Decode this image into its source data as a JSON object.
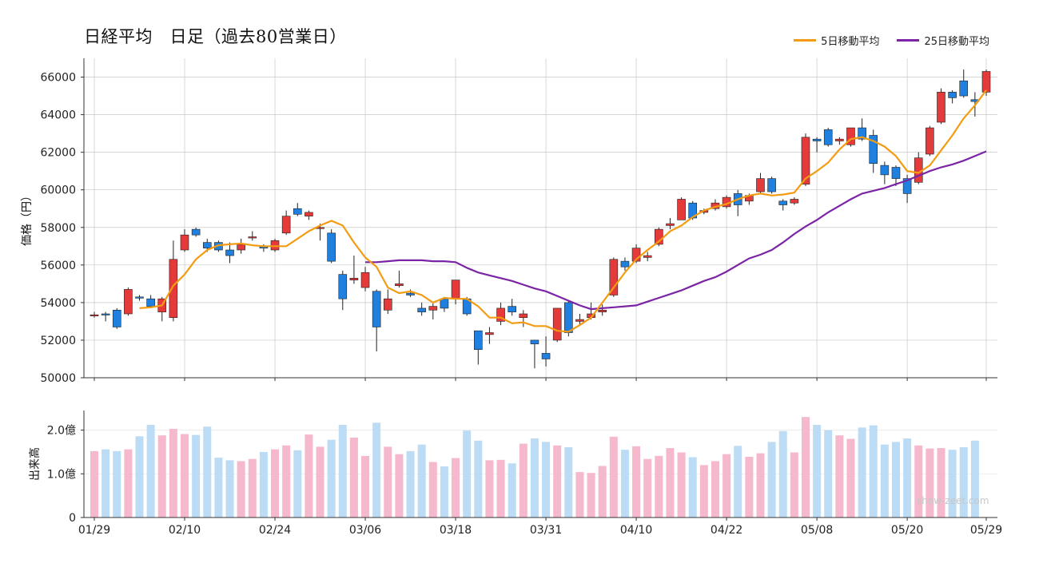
{
  "title": "日経平均　日足（過去80営業日）",
  "watermark": "show-zeet.com",
  "colors": {
    "up": "#e43a3a",
    "down": "#2080e0",
    "ma5": "#f39c12",
    "ma25": "#7b24a6",
    "vol_up": "#f5b8cc",
    "vol_down": "#bcdcf6",
    "grid": "#c8c8c8"
  },
  "legend": [
    {
      "label": "5日移動平均",
      "color": "#f39c12"
    },
    {
      "label": "25日移動平均",
      "color": "#7b24a6"
    }
  ],
  "chart_data": [
    {
      "type": "candlestick",
      "ylabel": "価格（円）",
      "ylim": [
        50000,
        67000
      ],
      "yticks": [
        "50000",
        "52000",
        "54000",
        "56000",
        "58000",
        "60000",
        "62000",
        "64000",
        "66000"
      ],
      "ytick_values": [
        50000,
        52000,
        54000,
        56000,
        58000,
        60000,
        62000,
        64000,
        66000
      ],
      "x_ticks": [
        {
          "index": 0,
          "label": "01/29"
        },
        {
          "index": 8,
          "label": "02/10"
        },
        {
          "index": 16,
          "label": "02/24"
        },
        {
          "index": 24,
          "label": "03/06"
        },
        {
          "index": 32,
          "label": "03/18"
        },
        {
          "index": 40,
          "label": "03/31"
        },
        {
          "index": 48,
          "label": "04/10"
        },
        {
          "index": 56,
          "label": "04/22"
        },
        {
          "index": 64,
          "label": "05/08"
        },
        {
          "index": 72,
          "label": "05/20"
        },
        {
          "index": 79,
          "label": "05/29"
        }
      ],
      "grid": true,
      "ohlc": [
        [
          53300,
          53500,
          53200,
          53350
        ],
        [
          53400,
          53500,
          53000,
          53350
        ],
        [
          53600,
          53700,
          52600,
          52700
        ],
        [
          53400,
          54800,
          53300,
          54700
        ],
        [
          54300,
          54400,
          54100,
          54250
        ],
        [
          54200,
          54400,
          53700,
          53800
        ],
        [
          53500,
          54300,
          53000,
          54200
        ],
        [
          53200,
          57300,
          53000,
          56300
        ],
        [
          56800,
          57900,
          56700,
          57600
        ],
        [
          57900,
          58000,
          57500,
          57600
        ],
        [
          57200,
          57400,
          56700,
          56900
        ],
        [
          57200,
          57300,
          56700,
          56800
        ],
        [
          56800,
          57200,
          56100,
          56500
        ],
        [
          56800,
          57400,
          56600,
          57100
        ],
        [
          57500,
          57800,
          57300,
          57500
        ],
        [
          57000,
          57100,
          56700,
          56900
        ],
        [
          56800,
          57400,
          56700,
          57300
        ],
        [
          57700,
          58900,
          57600,
          58600
        ],
        [
          59000,
          59300,
          58600,
          58700
        ],
        [
          58600,
          58900,
          58400,
          58800
        ],
        [
          58000,
          58200,
          57300,
          58000
        ],
        [
          57700,
          57900,
          56100,
          56200
        ],
        [
          55500,
          55700,
          53600,
          54200
        ],
        [
          55200,
          56500,
          55000,
          55300
        ],
        [
          54800,
          55900,
          54600,
          55600
        ],
        [
          54600,
          54700,
          51400,
          52700
        ],
        [
          53600,
          54700,
          53400,
          54200
        ],
        [
          54900,
          55700,
          54800,
          55000
        ],
        [
          54500,
          54700,
          54300,
          54400
        ],
        [
          53700,
          54000,
          53300,
          53500
        ],
        [
          53600,
          54000,
          53100,
          53800
        ],
        [
          54200,
          54300,
          53500,
          53700
        ],
        [
          54200,
          55200,
          53900,
          55200
        ],
        [
          54200,
          54300,
          53300,
          53400
        ],
        [
          52500,
          52500,
          50700,
          51500
        ],
        [
          52300,
          52700,
          51800,
          52400
        ],
        [
          53000,
          54000,
          52800,
          53700
        ],
        [
          53800,
          54200,
          53300,
          53500
        ],
        [
          53200,
          53600,
          52700,
          53400
        ],
        [
          52000,
          52000,
          50500,
          51800
        ],
        [
          51300,
          52200,
          50600,
          51000
        ],
        [
          52000,
          53700,
          51900,
          53700
        ],
        [
          54000,
          54100,
          52200,
          52400
        ],
        [
          53000,
          53400,
          52800,
          53100
        ],
        [
          53200,
          54000,
          53100,
          53400
        ],
        [
          53500,
          53900,
          53300,
          53600
        ],
        [
          54400,
          56400,
          54300,
          56300
        ],
        [
          56200,
          56400,
          55700,
          55900
        ],
        [
          56200,
          57100,
          56100,
          56900
        ],
        [
          56400,
          56700,
          56200,
          56500
        ],
        [
          57100,
          58000,
          57000,
          57900
        ],
        [
          58100,
          58500,
          57900,
          58200
        ],
        [
          58400,
          59600,
          58400,
          59500
        ],
        [
          59300,
          59400,
          58400,
          58500
        ],
        [
          58800,
          59000,
          58700,
          58900
        ],
        [
          59000,
          59500,
          58900,
          59300
        ],
        [
          59100,
          59700,
          59000,
          59600
        ],
        [
          59800,
          60000,
          58600,
          59200
        ],
        [
          59400,
          59800,
          59200,
          59700
        ],
        [
          59900,
          60900,
          59800,
          60600
        ],
        [
          60600,
          60700,
          59800,
          59900
        ],
        [
          59400,
          59500,
          58900,
          59200
        ],
        [
          59300,
          59600,
          59200,
          59500
        ],
        [
          60300,
          63000,
          60200,
          62800
        ],
        [
          62700,
          62800,
          62000,
          62600
        ],
        [
          63200,
          63300,
          62300,
          62400
        ],
        [
          62600,
          62800,
          62400,
          62700
        ],
        [
          62400,
          63300,
          62300,
          63300
        ],
        [
          63300,
          63800,
          62600,
          62700
        ],
        [
          62900,
          63200,
          60900,
          61400
        ],
        [
          61300,
          61500,
          60300,
          60800
        ],
        [
          61200,
          61300,
          60200,
          60600
        ],
        [
          60600,
          60800,
          59300,
          59800
        ],
        [
          60400,
          62000,
          60300,
          61700
        ],
        [
          61900,
          63400,
          61800,
          63300
        ],
        [
          63600,
          65400,
          63500,
          65200
        ],
        [
          65200,
          65300,
          64600,
          64900
        ],
        [
          65800,
          66400,
          64900,
          65000
        ],
        [
          64800,
          65200,
          63900,
          64700
        ],
        [
          65200,
          66400,
          65000,
          66300
        ]
      ],
      "ma5": [
        null,
        null,
        null,
        null,
        53700,
        53750,
        53850,
        54900,
        55500,
        56300,
        56800,
        57050,
        57100,
        57150,
        57050,
        57000,
        57000,
        57000,
        57400,
        57800,
        58100,
        58350,
        58100,
        57200,
        56400,
        55900,
        54800,
        54500,
        54600,
        54400,
        54000,
        54250,
        54200,
        54200,
        53800,
        53200,
        53200,
        52900,
        52950,
        52750,
        52750,
        52500,
        52450,
        52800,
        53200,
        54000,
        54800,
        55600,
        56300,
        56800,
        57250,
        57800,
        58100,
        58550,
        58900,
        59100,
        59250,
        59500,
        59700,
        59800,
        59700,
        59750,
        59850,
        60600,
        61000,
        61450,
        62150,
        62700,
        62800,
        62600,
        62300,
        61800,
        61000,
        60900,
        61300,
        62100,
        62900,
        63800,
        64500,
        65300
      ],
      "ma25": [
        null,
        null,
        null,
        null,
        null,
        null,
        null,
        null,
        null,
        null,
        null,
        null,
        null,
        null,
        null,
        null,
        null,
        null,
        null,
        null,
        null,
        null,
        null,
        null,
        56150,
        56150,
        56200,
        56250,
        56250,
        56250,
        56200,
        56200,
        56150,
        55850,
        55600,
        55450,
        55300,
        55150,
        54950,
        54750,
        54600,
        54350,
        54100,
        53850,
        53650,
        53700,
        53750,
        53800,
        53850,
        54050,
        54250,
        54450,
        54650,
        54900,
        55150,
        55350,
        55650,
        56000,
        56350,
        56550,
        56800,
        57200,
        57650,
        58050,
        58400,
        58800,
        59150,
        59500,
        59800,
        59950,
        60100,
        60300,
        60500,
        60750,
        61000,
        61200,
        61350,
        61550,
        61800,
        62050
      ]
    },
    {
      "type": "bar",
      "ylabel": "出来高",
      "ylim": [
        0,
        2.45
      ],
      "yticks": [
        "0",
        "1.0億",
        "2.0億"
      ],
      "ytick_values": [
        0,
        1.0,
        2.0
      ],
      "unit": "億",
      "values": [
        1.52,
        1.56,
        1.52,
        1.56,
        1.86,
        2.12,
        1.88,
        2.03,
        1.91,
        1.89,
        2.08,
        1.37,
        1.31,
        1.29,
        1.34,
        1.5,
        1.56,
        1.65,
        1.54,
        1.9,
        1.62,
        1.78,
        2.12,
        1.83,
        1.41,
        2.17,
        1.62,
        1.45,
        1.52,
        1.67,
        1.27,
        1.17,
        1.36,
        1.99,
        1.76,
        1.31,
        1.32,
        1.24,
        1.69,
        1.81,
        1.73,
        1.65,
        1.61,
        1.04,
        1.02,
        1.18,
        1.85,
        1.55,
        1.63,
        1.34,
        1.41,
        1.59,
        1.49,
        1.38,
        1.2,
        1.29,
        1.45,
        1.64,
        1.39,
        1.47,
        1.73,
        1.98,
        1.49,
        2.3,
        2.12,
        2.0,
        1.88,
        1.8,
        2.06,
        2.11,
        1.67,
        1.73,
        1.81,
        1.65,
        1.58,
        1.59,
        1.55,
        1.61,
        1.76,
        null
      ]
    }
  ]
}
